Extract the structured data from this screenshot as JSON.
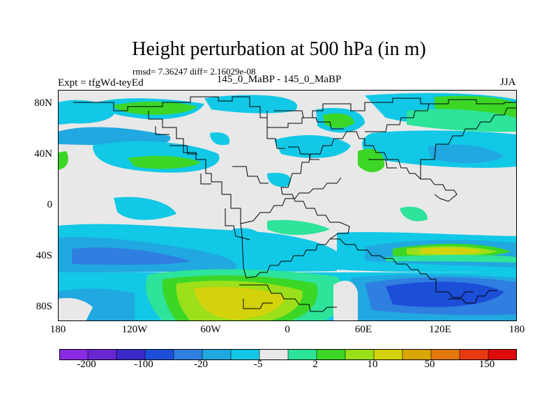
{
  "title": "Height perturbation at 500 hPa (in m)",
  "stats": "rmsd= 7.36247 diff= 2.16029e-08",
  "left_label": "Expt = tfgWd-teyEd",
  "center_label": "145_0_MaBP - 145_0_MaBP",
  "right_label": "JJA",
  "lat_ticks": [
    "80N",
    "40N",
    "0",
    "40S",
    "80S"
  ],
  "lon_ticks": [
    "180",
    "120W",
    "60W",
    "0",
    "60E",
    "120E",
    "180"
  ],
  "colorbar": {
    "colors": [
      "#8a2be2",
      "#6a26cf",
      "#3b28c8",
      "#1d4ed8",
      "#2f7fe0",
      "#21a8e0",
      "#11c8e6",
      "#e8e8e8",
      "#2ee39a",
      "#3cd626",
      "#9be01a",
      "#d4d20c",
      "#d8a604",
      "#e2770c",
      "#e83a12",
      "#dd0a0a"
    ],
    "labels": [
      "-200",
      "-100",
      "-20",
      "-5",
      "2",
      "10",
      "50",
      "150"
    ]
  },
  "palette": {
    "neutral": "#e8e8e8",
    "light_blue": "#11c8e6",
    "mid_blue": "#21a8e0",
    "blue": "#2f7fe0",
    "deep_blue": "#1d4ed8",
    "light_green": "#2ee39a",
    "green": "#3cd626",
    "lime": "#9be01a",
    "olive": "#d4d20c"
  }
}
